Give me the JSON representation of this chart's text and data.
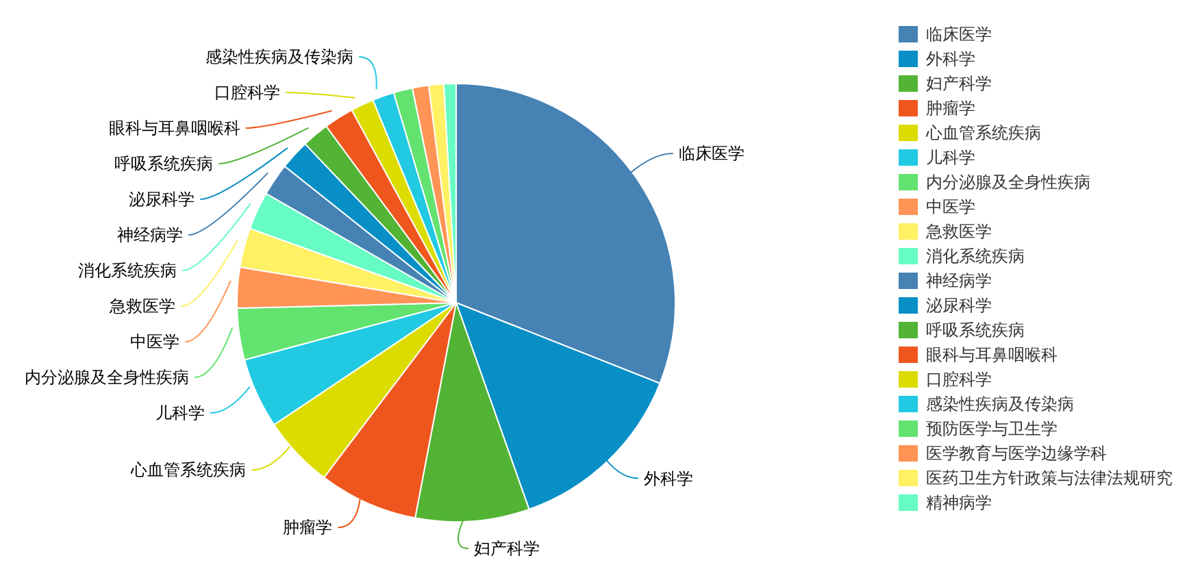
{
  "chart_data": {
    "type": "pie",
    "legend": "right",
    "categories": [
      "临床医学",
      "外科学",
      "妇产科学",
      "肿瘤学",
      "心血管系统疾病",
      "儿科学",
      "内分泌腺及全身性疾病",
      "中医学",
      "急救医学",
      "消化系统疾病",
      "神经病学",
      "泌尿科学",
      "呼吸系统疾病",
      "眼科与耳鼻咽喉科",
      "口腔科学",
      "感染性疾病及传染病",
      "预防医学与卫生学",
      "医学教育与医学边缘学科",
      "医药卫生方针政策与法律法规研究",
      "精神病学"
    ],
    "values": [
      31.0,
      13.6,
      8.4,
      7.3,
      5.3,
      5.2,
      3.8,
      3.0,
      2.9,
      2.8,
      2.4,
      2.2,
      2.0,
      2.2,
      1.7,
      1.6,
      1.4,
      1.2,
      1.1,
      0.9
    ],
    "colors": [
      "#4682b4",
      "#078fc6",
      "#52b334",
      "#ef561e",
      "#dcdc00",
      "#22c9e2",
      "#62e36f",
      "#ff9456",
      "#fff064",
      "#66fcc3",
      "#4682b4",
      "#078fc6",
      "#52b334",
      "#ef561e",
      "#dcdc00",
      "#22c9e2",
      "#62e36f",
      "#ff9456",
      "#fff064",
      "#66fcc3"
    ]
  }
}
